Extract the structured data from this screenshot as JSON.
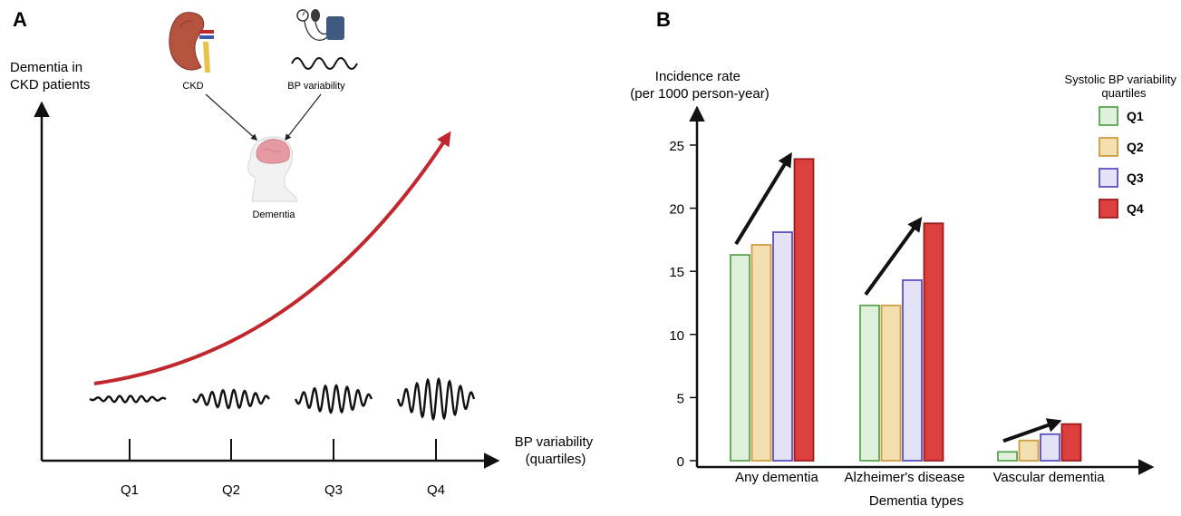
{
  "panel_a": {
    "letter": "A",
    "y_label": [
      "Dementia in",
      "CKD patients"
    ],
    "x_label": [
      "BP variability",
      "(quartiles)"
    ],
    "x_ticks": [
      "Q1",
      "Q2",
      "Q3",
      "Q4"
    ],
    "icons": {
      "kidney_label": "CKD",
      "bp_label": "BP variability",
      "brain_label": "Dementia"
    },
    "colors": {
      "trend_arrow": "#c0282e",
      "kidney": "#b5533f"
    }
  },
  "panel_b": {
    "letter": "B",
    "y_label": [
      "Incidence rate",
      "(per 1000 person-year)"
    ],
    "x_label": "Dementia types",
    "legend_title": [
      "Systolic BP variability",
      "quartiles"
    ]
  },
  "chart_data": {
    "type": "bar",
    "categories": [
      "Any dementia",
      "Alzheimer's disease",
      "Vascular dementia"
    ],
    "series": [
      {
        "name": "Q1",
        "values": [
          16.3,
          12.3,
          0.7
        ],
        "fill": "#dff1da",
        "stroke": "#5aa452"
      },
      {
        "name": "Q2",
        "values": [
          17.1,
          12.3,
          1.6
        ],
        "fill": "#f4dfae",
        "stroke": "#cf9b43"
      },
      {
        "name": "Q3",
        "values": [
          18.1,
          14.3,
          2.1
        ],
        "fill": "#e4e2f6",
        "stroke": "#5a4fc2"
      },
      {
        "name": "Q4",
        "values": [
          23.9,
          18.8,
          2.9
        ],
        "fill": "#dc3f3d",
        "stroke": "#9c1c1e"
      }
    ],
    "yticks": [
      "0",
      "5",
      "10",
      "15",
      "20",
      "25"
    ],
    "ylim": [
      0,
      27
    ],
    "xlabel": "Dementia types",
    "ylabel": "Incidence rate (per 1000 person-year)",
    "legend_position": "top-right",
    "grid": false
  }
}
